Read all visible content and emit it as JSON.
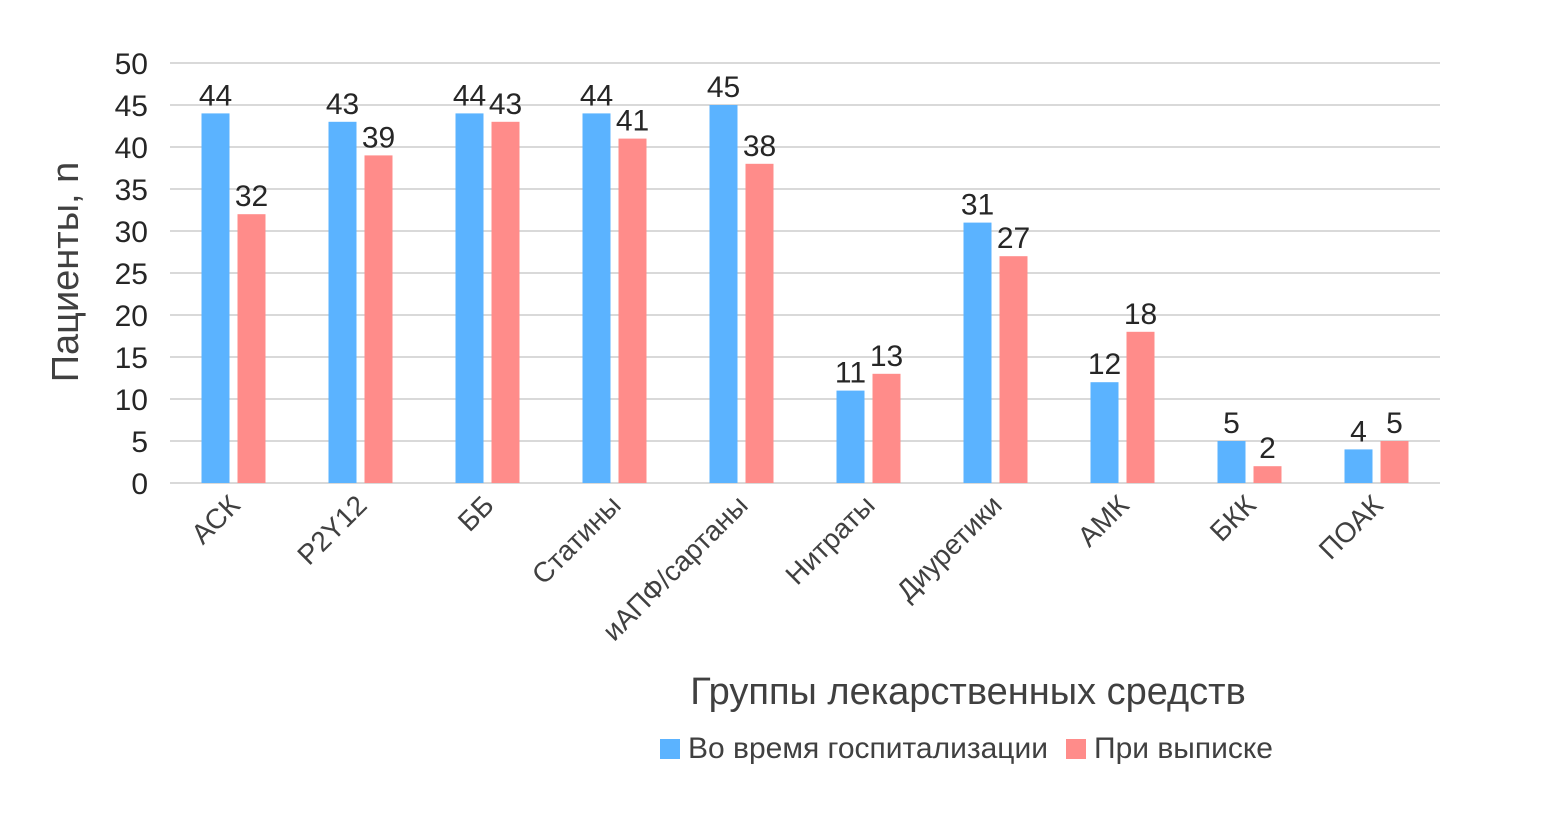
{
  "chart_data": {
    "type": "bar",
    "categories": [
      "АСК",
      "P2Y12",
      "ББ",
      "Статины",
      "иАПФ/сартаны",
      "Нитраты",
      "Диуретики",
      "АМК",
      "БКК",
      "ПОАК"
    ],
    "series": [
      {
        "name": "Во время госпитализации",
        "color": "#5bb3ff",
        "values": [
          44,
          43,
          44,
          44,
          45,
          11,
          31,
          12,
          5,
          4
        ]
      },
      {
        "name": "При выписке",
        "color": "#ff8c8a",
        "values": [
          32,
          39,
          43,
          41,
          38,
          13,
          27,
          18,
          2,
          5
        ]
      }
    ],
    "xlabel": "Группы лекарственных средств",
    "ylabel": "Пациенты, n",
    "ylim": [
      0,
      50
    ],
    "yticks": [
      0,
      5,
      10,
      15,
      20,
      25,
      30,
      35,
      40,
      45,
      50
    ],
    "grid": true,
    "legend_position": "bottom-right"
  }
}
